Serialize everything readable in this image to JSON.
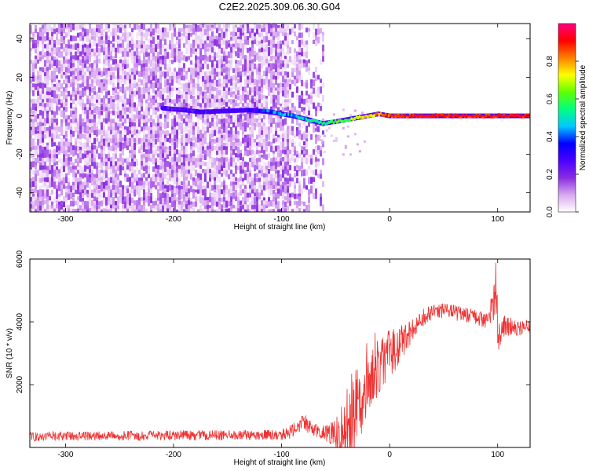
{
  "figure": {
    "title": "C2E2.2025.309.06.30.G04"
  },
  "chart_data": [
    {
      "type": "heatmap",
      "xlabel": "Height of straight line (km)",
      "ylabel": "Frequency (Hz)",
      "xlim": [
        -333,
        130
      ],
      "ylim": [
        -50,
        48
      ],
      "xticks": [
        -300,
        -200,
        -100,
        0,
        100
      ],
      "yticks": [
        -40,
        -20,
        0,
        20,
        40
      ],
      "grid": false,
      "colorbar": {
        "label": "Normalized spectral amplitude",
        "range": [
          0,
          1
        ],
        "ticks": [
          0.0,
          0.2,
          0.4,
          0.6,
          0.8
        ],
        "colormap": [
          "#ffffff",
          "#d9a8f0",
          "#8a2be2",
          "#4b00ff",
          "#0000ff",
          "#00c8ff",
          "#00ff80",
          "#60ff00",
          "#ffff00",
          "#ff8000",
          "#ff0000",
          "#ff0080"
        ]
      },
      "noise_region": {
        "x": [
          -333,
          -62
        ],
        "freq": [
          -50,
          48
        ],
        "amplitude": [
          0.05,
          0.2
        ]
      },
      "carrier": {
        "x": [
          -210,
          -190,
          -175,
          -130,
          -110,
          -90,
          -75,
          -62,
          -50,
          -40,
          -30,
          -20,
          -10,
          0,
          20,
          50,
          95,
          100,
          130
        ],
        "frequency": [
          4,
          3,
          2,
          3,
          2,
          0,
          -2,
          -4,
          -3,
          -2,
          -1,
          0,
          1,
          0,
          0,
          0,
          0,
          0,
          0
        ],
        "amplitude": [
          0.25,
          0.3,
          0.25,
          0.3,
          0.4,
          0.45,
          0.5,
          0.55,
          0.6,
          0.6,
          0.7,
          0.75,
          0.8,
          0.85,
          0.9,
          0.9,
          0.9,
          0.9,
          0.9
        ]
      }
    },
    {
      "type": "line",
      "xlabel": "Height of straight line (km)",
      "ylabel": "SNR (10 * v/v)",
      "xlim": [
        -333,
        130
      ],
      "ylim": [
        0,
        6000
      ],
      "xticks": [
        -300,
        -200,
        -100,
        0,
        100
      ],
      "yticks": [
        2000,
        4000,
        6000
      ],
      "grid": false,
      "series": [
        {
          "color": "#ee3333",
          "x": [
            -333,
            -300,
            -250,
            -200,
            -150,
            -110,
            -100,
            -95,
            -90,
            -85,
            -80,
            -75,
            -70,
            -65,
            -60,
            -55,
            -50,
            -45,
            -40,
            -35,
            -30,
            -25,
            -20,
            -15,
            -10,
            -5,
            0,
            5,
            10,
            15,
            20,
            25,
            30,
            40,
            50,
            60,
            70,
            80,
            90,
            95,
            98,
            100,
            102,
            105,
            110,
            120,
            130
          ],
          "y": [
            350,
            360,
            370,
            380,
            390,
            400,
            420,
            460,
            520,
            700,
            850,
            650,
            560,
            520,
            500,
            420,
            400,
            420,
            520,
            900,
            1500,
            1900,
            2200,
            2500,
            2700,
            2900,
            3000,
            3150,
            3300,
            3500,
            3700,
            3900,
            4100,
            4300,
            4350,
            4300,
            4200,
            4150,
            4050,
            4400,
            5200,
            4000,
            3200,
            3900,
            3850,
            3800,
            3850
          ],
          "spread": [
            150,
            150,
            150,
            160,
            160,
            160,
            180,
            200,
            220,
            250,
            300,
            250,
            220,
            220,
            250,
            350,
            500,
            900,
            1300,
            1500,
            1500,
            1400,
            1300,
            1200,
            1000,
            900,
            800,
            700,
            600,
            500,
            400,
            350,
            300,
            250,
            250,
            250,
            250,
            250,
            300,
            500,
            900,
            800,
            600,
            400,
            300,
            250,
            250
          ]
        }
      ]
    }
  ]
}
